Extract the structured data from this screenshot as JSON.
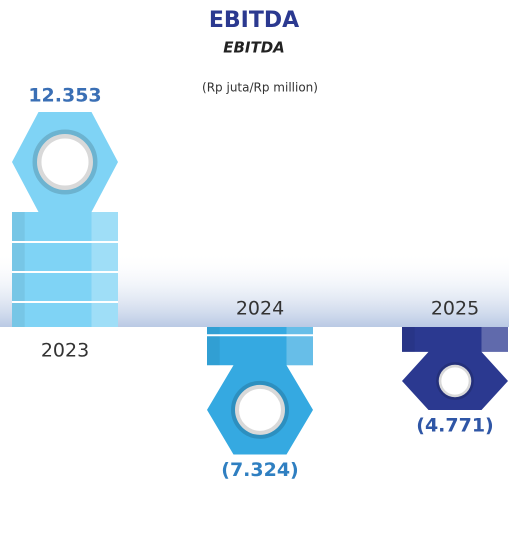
{
  "chart_data": {
    "type": "bar",
    "title": "EBITDA",
    "subtitle": "EBITDA",
    "unit": "(Rp juta/Rp million)",
    "categories": [
      "2023",
      "2024",
      "2025"
    ],
    "values": [
      12353,
      -7324,
      -4771
    ],
    "value_labels": [
      "12.353",
      "(7.324)",
      "(4.771)"
    ],
    "colors": [
      "#7fd3f5",
      "#35a9e1",
      "#2b3990"
    ],
    "label_colors": [
      "#3a6fb5",
      "#2f7fc1",
      "#2f56a6"
    ]
  }
}
